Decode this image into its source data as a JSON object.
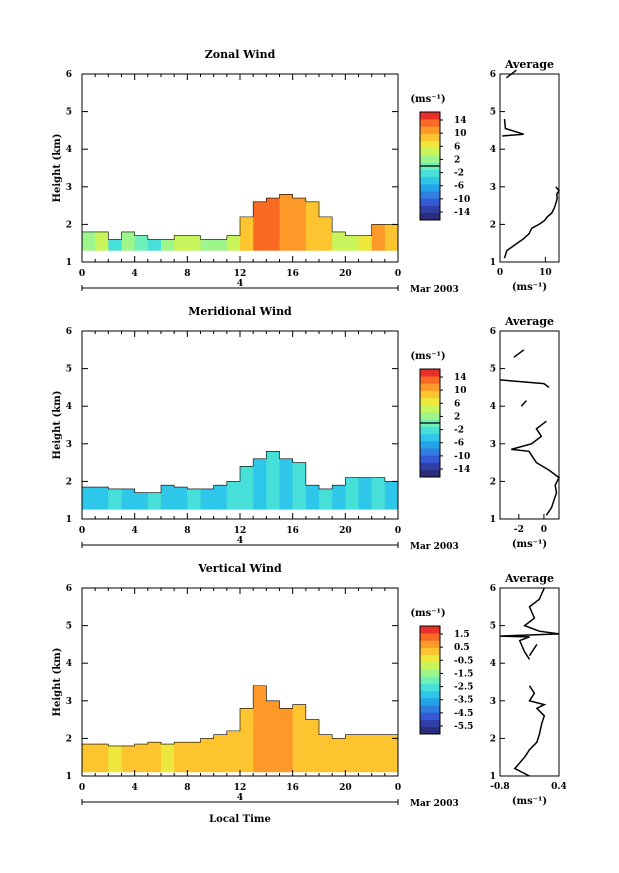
{
  "colors": {
    "cmap": [
      "#2b2d7a",
      "#2f3fa6",
      "#3558d6",
      "#2f7ee0",
      "#24a3e8",
      "#2ec7ea",
      "#47e0d8",
      "#6ff0b8",
      "#9ef58c",
      "#c8f45c",
      "#eee83c",
      "#fcc42e",
      "#fc9928",
      "#f96a24",
      "#e8302a"
    ],
    "line": "#000000"
  },
  "chart_data": [
    {
      "id": "zonal",
      "type": "heatmap",
      "title": "Zonal Wind",
      "xlabel": "",
      "ylabel": "Height (km)",
      "xlim": [
        0,
        24
      ],
      "ylim": [
        1,
        6
      ],
      "xticks": [
        "0",
        "4",
        "8",
        "12",
        "16",
        "20",
        "0"
      ],
      "yticks": [
        "1",
        "2",
        "3",
        "4",
        "5",
        "6"
      ],
      "date_center": "4",
      "date_label": "Mar 2003",
      "colorbar": {
        "unit": "(ms⁻¹)",
        "ticks": [
          "14",
          "10",
          "6",
          "2",
          "-2",
          "-6",
          "-10",
          "-14"
        ],
        "range": [
          -14,
          14
        ]
      },
      "zero_line_value": 0,
      "avg": {
        "title": "Average",
        "xlim": [
          0,
          13
        ],
        "xticks": [
          "0",
          "10"
        ],
        "xtick_values": [
          0,
          10
        ],
        "xlabel": "(ms⁻¹)",
        "segments": [
          [
            [
              1.0,
              1.1
            ],
            [
              1.5,
              1.3
            ],
            [
              3.2,
              1.45
            ],
            [
              5.0,
              1.6
            ],
            [
              6.4,
              1.75
            ],
            [
              7.0,
              1.9
            ],
            [
              8.6,
              2.0
            ],
            [
              9.8,
              2.1
            ],
            [
              10.4,
              2.2
            ],
            [
              11.4,
              2.3
            ],
            [
              12.0,
              2.45
            ],
            [
              12.4,
              2.6
            ],
            [
              12.6,
              2.7
            ],
            [
              12.5,
              2.8
            ],
            [
              13.0,
              2.9
            ],
            [
              12.3,
              3.0
            ]
          ],
          [
            [
              0.5,
              4.35
            ],
            [
              5.2,
              4.4
            ],
            [
              1.2,
              4.55
            ],
            [
              1.0,
              4.8
            ]
          ],
          [
            [
              1.4,
              5.9
            ],
            [
              3.6,
              6.1
            ]
          ]
        ]
      },
      "field": {
        "base": 1.3,
        "tops": [
          1.8,
          1.8,
          1.6,
          1.8,
          1.7,
          1.6,
          1.6,
          1.7,
          1.7,
          1.6,
          1.6,
          1.7,
          2.2,
          2.6,
          2.7,
          2.8,
          2.7,
          2.6,
          2.2,
          1.8,
          1.7,
          1.7,
          2.0,
          2.0
        ],
        "values": [
          2,
          3,
          -1,
          1,
          0,
          -1,
          2,
          3,
          4,
          2,
          1,
          4,
          8,
          12,
          11,
          10,
          9,
          8,
          7,
          4,
          3,
          5,
          9,
          8
        ]
      }
    },
    {
      "id": "meridional",
      "type": "heatmap",
      "title": "Meridional Wind",
      "xlabel": "",
      "ylabel": "Height (km)",
      "xlim": [
        0,
        24
      ],
      "ylim": [
        1,
        6
      ],
      "xticks": [
        "0",
        "4",
        "8",
        "12",
        "16",
        "20",
        "0"
      ],
      "yticks": [
        "1",
        "2",
        "3",
        "4",
        "5",
        "6"
      ],
      "date_center": "4",
      "date_label": "Mar 2003",
      "colorbar": {
        "unit": "(ms⁻¹)",
        "ticks": [
          "14",
          "10",
          "6",
          "2",
          "-2",
          "-6",
          "-10",
          "-14"
        ],
        "range": [
          -14,
          14
        ]
      },
      "zero_line_value": 0,
      "avg": {
        "title": "Average",
        "xlim": [
          -3.5,
          1.2
        ],
        "xticks": [
          "-2",
          "0"
        ],
        "xtick_values": [
          -2,
          0
        ],
        "xlabel": "(ms⁻¹)",
        "segments": [
          [
            [
              0.2,
              1.1
            ],
            [
              0.6,
              1.3
            ],
            [
              0.8,
              1.5
            ],
            [
              1.0,
              1.7
            ],
            [
              0.9,
              1.9
            ],
            [
              1.2,
              2.1
            ],
            [
              0.4,
              2.3
            ],
            [
              -0.6,
              2.5
            ],
            [
              -1.2,
              2.8
            ],
            [
              -2.6,
              2.85
            ],
            [
              -1.0,
              3.0
            ],
            [
              -0.2,
              3.2
            ],
            [
              -0.6,
              3.4
            ],
            [
              0.2,
              3.6
            ]
          ],
          [
            [
              -1.8,
              4.0
            ],
            [
              -1.4,
              4.15
            ]
          ],
          [
            [
              -3.5,
              4.7
            ],
            [
              0.0,
              4.6
            ],
            [
              0.4,
              4.5
            ]
          ],
          [
            [
              -2.4,
              5.3
            ],
            [
              -1.6,
              5.5
            ]
          ]
        ]
      },
      "field": {
        "base": 1.25,
        "tops": [
          1.85,
          1.85,
          1.8,
          1.8,
          1.7,
          1.7,
          1.9,
          1.85,
          1.8,
          1.8,
          1.9,
          2.0,
          2.4,
          2.6,
          2.8,
          2.6,
          2.5,
          1.9,
          1.8,
          1.9,
          2.1,
          2.1,
          2.1,
          2.0
        ],
        "values": [
          -3,
          -3,
          -2,
          -3,
          -3,
          -2,
          -3,
          -3,
          -2,
          -3,
          -3,
          -2,
          -2,
          -3,
          -2,
          -3,
          -2,
          -3,
          -2,
          -3,
          -2,
          -3,
          -2,
          -3
        ]
      }
    },
    {
      "id": "vertical",
      "type": "heatmap",
      "title": "Vertical Wind",
      "xlabel": "Local Time",
      "ylabel": "Height (km)",
      "xlim": [
        0,
        24
      ],
      "ylim": [
        1,
        6
      ],
      "xticks": [
        "0",
        "4",
        "8",
        "12",
        "16",
        "20",
        "0"
      ],
      "yticks": [
        "1",
        "2",
        "3",
        "4",
        "5",
        "6"
      ],
      "date_center": "4",
      "date_label": "Mar 2003",
      "colorbar": {
        "unit": "(ms⁻¹)",
        "ticks": [
          "1.5",
          "0.5",
          "-0.5",
          "-1.5",
          "-2.5",
          "-3.5",
          "-4.5",
          "-5.5"
        ],
        "range": [
          -6,
          2
        ]
      },
      "zero_line_value": null,
      "avg": {
        "title": "Average",
        "xlim": [
          -0.8,
          0.4
        ],
        "xticks": [
          "-0.8",
          "0.4"
        ],
        "xtick_values": [
          -0.8,
          0.4
        ],
        "xlabel": "(ms⁻¹)",
        "segments": [
          [
            [
              -0.2,
              1.0
            ],
            [
              -0.5,
              1.2
            ],
            [
              -0.3,
              1.5
            ],
            [
              -0.2,
              1.7
            ],
            [
              -0.05,
              1.9
            ],
            [
              0.0,
              2.1
            ],
            [
              0.05,
              2.4
            ],
            [
              0.1,
              2.6
            ],
            [
              -0.05,
              2.8
            ],
            [
              0.1,
              2.9
            ],
            [
              -0.2,
              3.0
            ],
            [
              -0.1,
              3.2
            ],
            [
              -0.2,
              3.4
            ]
          ],
          [
            [
              -0.2,
              4.2
            ],
            [
              -0.05,
              4.5
            ]
          ],
          [
            [
              -0.2,
              4.1
            ],
            [
              -0.3,
              4.3
            ],
            [
              -0.4,
              4.6
            ],
            [
              -0.2,
              4.7
            ],
            [
              -0.8,
              4.72
            ],
            [
              -0.2,
              4.75
            ],
            [
              0.4,
              4.78
            ],
            [
              0.0,
              4.85
            ],
            [
              -0.3,
              5.0
            ],
            [
              -0.1,
              5.2
            ],
            [
              -0.2,
              5.5
            ],
            [
              0.0,
              5.7
            ],
            [
              0.1,
              6.0
            ]
          ]
        ]
      },
      "field": {
        "base": 1.1,
        "tops": [
          1.85,
          1.85,
          1.8,
          1.8,
          1.85,
          1.9,
          1.85,
          1.9,
          1.9,
          2.0,
          2.1,
          2.2,
          2.8,
          3.4,
          3.0,
          2.8,
          2.9,
          2.5,
          2.1,
          2.0,
          2.1,
          2.1,
          2.1,
          2.1
        ],
        "values": [
          0,
          0,
          -0.5,
          0,
          0,
          0,
          -0.5,
          0,
          0,
          0,
          0,
          0,
          0.3,
          0.5,
          0.5,
          0.4,
          0.3,
          0,
          0,
          0,
          0,
          0,
          0,
          0
        ]
      }
    }
  ]
}
